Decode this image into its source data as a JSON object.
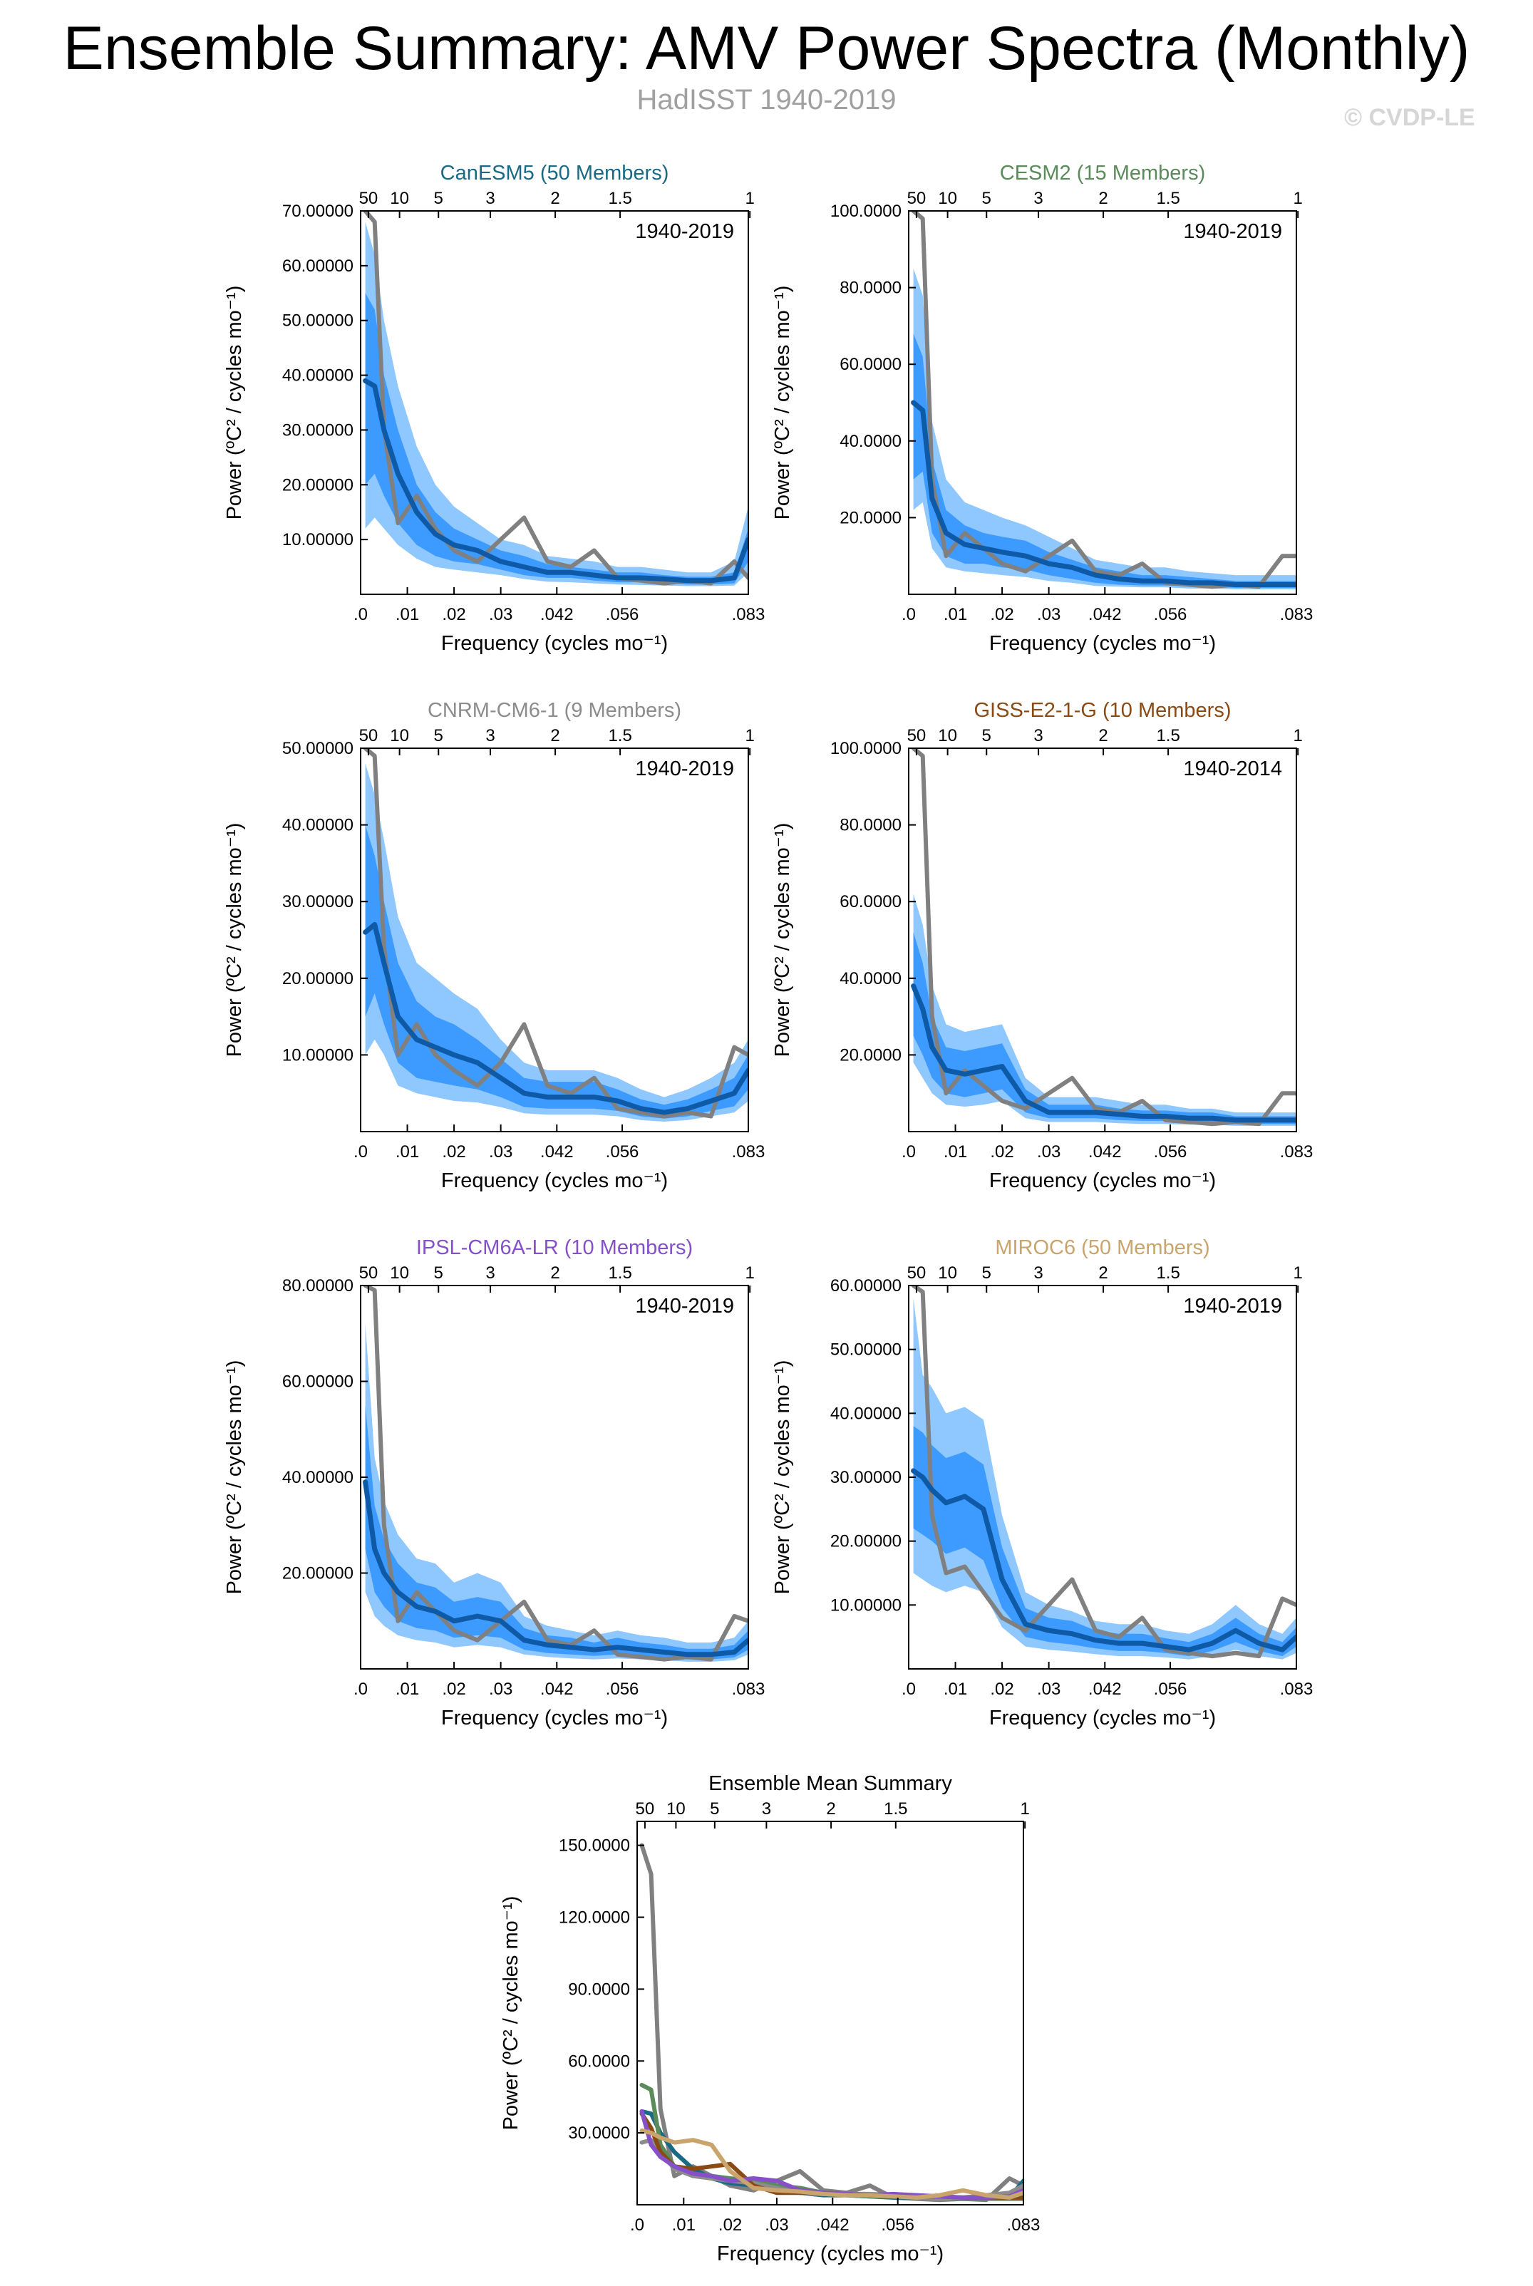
{
  "page": {
    "title": "Ensemble Summary: AMV Power Spectra (Monthly)",
    "subtitle": "HadISST 1940-2019",
    "copyright": "© CVDP-LE"
  },
  "colors": {
    "ens_line": "#0e5aa7",
    "band_outer": "#8fc7ff",
    "band_inner": "#3d9bff",
    "obs_line": "#808080",
    "axis": "#000000"
  },
  "shared_axes": {
    "x_ticks": [
      0.0,
      0.01,
      0.02,
      0.03,
      0.042,
      0.056,
      0.083
    ],
    "x_tick_labels": [
      ".0",
      ".01",
      ".02",
      ".03",
      ".042",
      ".056",
      ".083"
    ],
    "top_period_ticks": [
      {
        "freq": 0.001667,
        "label": "50"
      },
      {
        "freq": 0.008333,
        "label": "10"
      },
      {
        "freq": 0.016667,
        "label": "5"
      },
      {
        "freq": 0.027778,
        "label": "3"
      },
      {
        "freq": 0.041667,
        "label": "2"
      },
      {
        "freq": 0.055556,
        "label": "1.5"
      },
      {
        "freq": 0.083333,
        "label": "1"
      }
    ],
    "xlabel": "Frequency (cycles mo⁻¹)",
    "ylabel": "Power (ºC² / cycles mo⁻¹)",
    "xlim": [
      0,
      0.083
    ]
  },
  "chart_data": [
    {
      "type": "line",
      "title": "CanESM5 (50 Members)",
      "title_color": "#1a6a86",
      "period_label": "1940-2019",
      "ylim": [
        0,
        70
      ],
      "y_ticks": [
        10,
        20,
        30,
        40,
        50,
        60,
        70
      ],
      "y_tick_labels": [
        "10.00000",
        "20.00000",
        "30.00000",
        "40.00000",
        "50.00000",
        "60.00000",
        "70.00000"
      ],
      "x": [
        0.001,
        0.003,
        0.005,
        0.008,
        0.012,
        0.016,
        0.02,
        0.025,
        0.03,
        0.035,
        0.04,
        0.045,
        0.05,
        0.055,
        0.06,
        0.065,
        0.07,
        0.075,
        0.08,
        0.083
      ],
      "ens_mean": [
        39,
        38,
        30,
        22,
        15,
        11,
        9,
        8,
        6,
        5,
        4,
        4,
        3.5,
        3,
        3,
        2.8,
        2.5,
        2.5,
        3,
        10
      ],
      "band_inner_low": [
        20,
        22,
        18,
        13,
        9,
        7,
        6,
        5.5,
        4.5,
        3.5,
        3,
        3,
        2.5,
        2.2,
        2.2,
        2,
        1.8,
        1.8,
        2,
        6
      ],
      "band_inner_high": [
        55,
        52,
        40,
        30,
        20,
        15,
        12,
        10,
        8,
        7,
        5.5,
        5,
        4.5,
        4,
        4,
        3.5,
        3.2,
        3.2,
        4,
        12
      ],
      "band_outer_low": [
        12,
        14,
        12,
        9,
        6.5,
        5,
        4.5,
        4,
        3.5,
        2.8,
        2.3,
        2.2,
        2,
        1.8,
        1.7,
        1.6,
        1.5,
        1.5,
        1.6,
        4
      ],
      "band_outer_high": [
        68,
        62,
        50,
        38,
        27,
        20,
        16,
        13,
        10,
        9,
        7,
        6.5,
        6,
        5,
        5,
        4.5,
        4,
        4,
        6,
        16
      ],
      "obs": [
        70,
        68,
        30,
        13,
        18,
        12,
        8,
        6,
        10,
        14,
        6,
        5,
        8,
        3,
        2.5,
        2,
        2.5,
        2,
        6,
        3
      ]
    },
    {
      "type": "line",
      "title": "CESM2 (15 Members)",
      "title_color": "#5b8a5b",
      "period_label": "1940-2019",
      "ylim": [
        0,
        100
      ],
      "y_ticks": [
        20,
        40,
        60,
        80,
        100
      ],
      "y_tick_labels": [
        "20.0000",
        "40.0000",
        "60.0000",
        "80.0000",
        "100.0000"
      ],
      "x": [
        0.001,
        0.003,
        0.005,
        0.008,
        0.012,
        0.016,
        0.02,
        0.025,
        0.03,
        0.035,
        0.04,
        0.045,
        0.05,
        0.055,
        0.06,
        0.065,
        0.07,
        0.075,
        0.08,
        0.083
      ],
      "ens_mean": [
        50,
        48,
        25,
        16,
        13,
        12,
        11,
        10,
        8,
        7,
        5,
        4,
        3.5,
        3.5,
        3,
        3,
        2.5,
        2.5,
        2.5,
        2.5
      ],
      "band_inner_low": [
        30,
        32,
        16,
        10,
        8,
        8,
        7,
        6.5,
        5,
        4,
        3,
        2.5,
        2.3,
        2.3,
        2,
        2,
        1.7,
        1.7,
        1.7,
        1.7
      ],
      "band_inner_high": [
        68,
        62,
        35,
        22,
        18,
        16,
        15,
        14,
        11,
        9,
        7,
        6,
        5,
        5,
        4.5,
        4,
        3.5,
        3.5,
        3.5,
        3.5
      ],
      "band_outer_low": [
        22,
        24,
        12,
        7,
        6,
        5.5,
        5,
        4.5,
        3.5,
        3,
        2.2,
        2,
        1.8,
        1.8,
        1.5,
        1.5,
        1.3,
        1.3,
        1.3,
        1.3
      ],
      "band_outer_high": [
        85,
        78,
        45,
        30,
        24,
        22,
        20,
        18,
        15,
        12,
        9,
        8,
        7,
        7,
        6,
        5.5,
        5,
        5,
        5,
        5
      ],
      "obs": [
        100,
        98,
        30,
        10,
        16,
        12,
        8,
        6,
        10,
        14,
        6,
        5,
        8,
        3,
        2.5,
        2,
        2.5,
        2,
        10,
        10
      ]
    },
    {
      "type": "line",
      "title": "CNRM-CM6-1 (9 Members)",
      "title_color": "#8c8c8c",
      "period_label": "1940-2019",
      "ylim": [
        0,
        50
      ],
      "y_ticks": [
        10,
        20,
        30,
        40,
        50
      ],
      "y_tick_labels": [
        "10.00000",
        "20.00000",
        "30.00000",
        "40.00000",
        "50.00000"
      ],
      "x": [
        0.001,
        0.003,
        0.005,
        0.008,
        0.012,
        0.016,
        0.02,
        0.025,
        0.03,
        0.035,
        0.04,
        0.045,
        0.05,
        0.055,
        0.06,
        0.065,
        0.07,
        0.075,
        0.08,
        0.083
      ],
      "ens_mean": [
        26,
        27,
        22,
        15,
        12,
        11,
        10,
        9,
        7,
        5,
        4.5,
        4.5,
        4.5,
        4,
        3,
        2.5,
        3,
        4,
        5,
        8
      ],
      "band_inner_low": [
        15,
        18,
        14,
        9,
        7,
        6.5,
        6,
        5.5,
        4.5,
        3.2,
        3,
        3,
        3,
        2.7,
        2,
        1.7,
        2,
        2.7,
        3.3,
        5.5
      ],
      "band_inner_high": [
        40,
        36,
        30,
        22,
        17,
        15,
        14,
        12,
        9.5,
        7,
        6.5,
        6.5,
        6.5,
        5.5,
        4.2,
        3.5,
        4.2,
        5.5,
        7,
        10
      ],
      "band_outer_low": [
        10,
        12,
        10,
        6,
        5,
        4.5,
        4,
        3.8,
        3.2,
        2.4,
        2.2,
        2.2,
        2.2,
        2,
        1.5,
        1.3,
        1.5,
        2,
        2.5,
        4
      ],
      "band_outer_high": [
        48,
        44,
        38,
        28,
        22,
        20,
        18,
        16,
        12,
        9,
        8,
        8,
        8,
        7,
        5.5,
        4.5,
        5.5,
        7,
        9,
        12
      ],
      "obs": [
        50,
        49,
        24,
        10,
        14,
        10,
        8,
        6,
        9,
        14,
        6,
        5,
        7,
        3,
        2.5,
        2,
        2.5,
        2,
        11,
        10
      ]
    },
    {
      "type": "line",
      "title": "GISS-E2-1-G (10 Members)",
      "title_color": "#8a4a14",
      "period_label": "1940-2014",
      "ylim": [
        0,
        100
      ],
      "y_ticks": [
        20,
        40,
        60,
        80,
        100
      ],
      "y_tick_labels": [
        "20.0000",
        "40.0000",
        "60.0000",
        "80.0000",
        "100.0000"
      ],
      "x": [
        0.001,
        0.003,
        0.005,
        0.008,
        0.012,
        0.016,
        0.02,
        0.025,
        0.03,
        0.035,
        0.04,
        0.045,
        0.05,
        0.055,
        0.06,
        0.065,
        0.07,
        0.075,
        0.08,
        0.083
      ],
      "ens_mean": [
        38,
        32,
        22,
        16,
        15,
        16,
        17,
        8,
        5,
        5,
        5,
        4.5,
        4,
        4,
        3.5,
        3.5,
        3,
        3,
        3,
        3
      ],
      "band_inner_low": [
        25,
        20,
        14,
        10,
        9,
        10,
        11,
        5,
        3.5,
        3.5,
        3.5,
        3,
        2.8,
        2.8,
        2.4,
        2.4,
        2,
        2,
        2,
        2
      ],
      "band_inner_high": [
        52,
        44,
        30,
        22,
        21,
        22,
        23,
        11,
        7,
        7,
        7,
        6,
        5.5,
        5.5,
        5,
        5,
        4,
        4,
        4,
        4
      ],
      "band_outer_low": [
        18,
        14,
        10,
        7,
        6.5,
        7,
        8,
        3.5,
        2.5,
        2.5,
        2.5,
        2.2,
        2,
        2,
        1.8,
        1.8,
        1.5,
        1.5,
        1.5,
        1.5
      ],
      "band_outer_high": [
        62,
        54,
        38,
        28,
        26,
        27,
        28,
        14,
        9,
        9,
        9,
        8,
        7,
        7,
        6,
        6,
        5,
        5,
        5,
        5
      ],
      "obs": [
        100,
        98,
        30,
        10,
        16,
        12,
        8,
        6,
        10,
        14,
        6,
        5,
        8,
        3,
        2.5,
        2,
        2.5,
        2,
        10,
        10
      ]
    },
    {
      "type": "line",
      "title": "IPSL-CM6A-LR (10 Members)",
      "title_color": "#8550c8",
      "period_label": "1940-2019",
      "ylim": [
        0,
        80
      ],
      "y_ticks": [
        20,
        40,
        60,
        80
      ],
      "y_tick_labels": [
        "20.00000",
        "40.00000",
        "60.00000",
        "80.00000"
      ],
      "x": [
        0.001,
        0.003,
        0.005,
        0.008,
        0.012,
        0.016,
        0.02,
        0.025,
        0.03,
        0.035,
        0.04,
        0.045,
        0.05,
        0.055,
        0.06,
        0.065,
        0.07,
        0.075,
        0.08,
        0.083
      ],
      "ens_mean": [
        39,
        25,
        20,
        16,
        13,
        12,
        10,
        11,
        10,
        6,
        5,
        4.5,
        4,
        4.5,
        4,
        3.5,
        3,
        3,
        3.5,
        6
      ],
      "band_inner_low": [
        25,
        16,
        13,
        10,
        8.5,
        8,
        6.5,
        7,
        6.5,
        4,
        3.3,
        3,
        2.7,
        3,
        2.7,
        2.4,
        2,
        2,
        2.4,
        4
      ],
      "band_inner_high": [
        55,
        34,
        27,
        22,
        18,
        17,
        14,
        15,
        14,
        8.5,
        7,
        6.5,
        5.5,
        6.5,
        5.5,
        5,
        4.2,
        4.2,
        5,
        8
      ],
      "band_outer_low": [
        16,
        11,
        9,
        7,
        6,
        5.5,
        4.5,
        5,
        4.5,
        3,
        2.5,
        2.2,
        2,
        2.2,
        2,
        1.8,
        1.5,
        1.5,
        1.8,
        3
      ],
      "band_outer_high": [
        72,
        44,
        35,
        28,
        23,
        22,
        18,
        20,
        18,
        11,
        9,
        8,
        7,
        8,
        7,
        6.5,
        5.5,
        5.5,
        6.5,
        10
      ],
      "obs": [
        80,
        79,
        30,
        10,
        16,
        12,
        8,
        6,
        10,
        14,
        6,
        5,
        8,
        3,
        2.5,
        2,
        2.5,
        2,
        11,
        10
      ]
    },
    {
      "type": "line",
      "title": "MIROC6 (50 Members)",
      "title_color": "#c9a46c",
      "period_label": "1940-2019",
      "ylim": [
        0,
        60
      ],
      "y_ticks": [
        10,
        20,
        30,
        40,
        50,
        60
      ],
      "y_tick_labels": [
        "10.00000",
        "20.00000",
        "30.00000",
        "40.00000",
        "50.00000",
        "60.00000"
      ],
      "x": [
        0.001,
        0.003,
        0.005,
        0.008,
        0.012,
        0.016,
        0.02,
        0.025,
        0.03,
        0.035,
        0.04,
        0.045,
        0.05,
        0.055,
        0.06,
        0.065,
        0.07,
        0.075,
        0.08,
        0.083
      ],
      "ens_mean": [
        31,
        30,
        28,
        26,
        27,
        25,
        14,
        7,
        6,
        5.5,
        4.5,
        4,
        4,
        3.5,
        3,
        4,
        6,
        4,
        3,
        5
      ],
      "band_inner_low": [
        22,
        21,
        20,
        18,
        19,
        17,
        9.5,
        5,
        4.2,
        3.8,
        3.2,
        2.8,
        2.8,
        2.5,
        2,
        2.8,
        4.2,
        2.8,
        2,
        3.5
      ],
      "band_inner_high": [
        38,
        37,
        35,
        33,
        34,
        32,
        19,
        9.5,
        8,
        7.5,
        6,
        5.5,
        5.5,
        4.8,
        4.2,
        5.5,
        8,
        5.5,
        4.2,
        6.5
      ],
      "band_outer_low": [
        15,
        14,
        13,
        12,
        13,
        12,
        6.5,
        3.5,
        3,
        2.7,
        2.3,
        2,
        2,
        1.8,
        1.5,
        2,
        3,
        2,
        1.5,
        2.5
      ],
      "band_outer_high": [
        58,
        46,
        44,
        40,
        41,
        39,
        24,
        12,
        10,
        9,
        7.5,
        7,
        7,
        6,
        5.5,
        7,
        10,
        7,
        5.5,
        8
      ],
      "obs": [
        60,
        59,
        24,
        15,
        16,
        12,
        8,
        6,
        10,
        14,
        6,
        5,
        8,
        3,
        2.5,
        2,
        2.5,
        2,
        11,
        10
      ]
    },
    {
      "type": "line",
      "title": "Ensemble Mean Summary",
      "ylim": [
        0,
        160
      ],
      "y_ticks": [
        30,
        60,
        90,
        120,
        150
      ],
      "y_tick_labels": [
        "30.0000",
        "60.0000",
        "90.0000",
        "120.0000",
        "150.0000"
      ],
      "x": [
        0.001,
        0.003,
        0.005,
        0.008,
        0.012,
        0.016,
        0.02,
        0.025,
        0.03,
        0.035,
        0.04,
        0.045,
        0.05,
        0.055,
        0.06,
        0.065,
        0.07,
        0.075,
        0.08,
        0.083
      ],
      "series": [
        {
          "name": "HadISST",
          "color": "#808080",
          "values": [
            150,
            138,
            40,
            12,
            16,
            12,
            8,
            6,
            10,
            14,
            6,
            5,
            8,
            3,
            2.5,
            2,
            2.5,
            2,
            11,
            8
          ]
        },
        {
          "name": "CanESM5",
          "color": "#1a6a86",
          "values": [
            39,
            38,
            30,
            22,
            15,
            11,
            9,
            8,
            6,
            5,
            4,
            4,
            3.5,
            3,
            3,
            2.8,
            2.5,
            2.5,
            3,
            10
          ]
        },
        {
          "name": "CESM2",
          "color": "#5b8a5b",
          "values": [
            50,
            48,
            25,
            16,
            13,
            12,
            11,
            10,
            8,
            7,
            5,
            4,
            3.5,
            3.5,
            3,
            3,
            2.5,
            2.5,
            2.5,
            2.5
          ]
        },
        {
          "name": "CNRM-CM6-1",
          "color": "#8c8c8c",
          "values": [
            26,
            27,
            22,
            15,
            12,
            11,
            10,
            9,
            7,
            5,
            4.5,
            4.5,
            4.5,
            4,
            3,
            2.5,
            3,
            4,
            5,
            8
          ]
        },
        {
          "name": "GISS-E2-1-G",
          "color": "#8a4a14",
          "values": [
            38,
            32,
            22,
            16,
            15,
            16,
            17,
            8,
            5,
            5,
            5,
            4.5,
            4,
            4,
            3.5,
            3.5,
            3,
            3,
            3,
            3
          ]
        },
        {
          "name": "IPSL-CM6A-LR",
          "color": "#8550c8",
          "values": [
            39,
            25,
            20,
            16,
            13,
            12,
            10,
            11,
            10,
            6,
            5,
            4.5,
            4,
            4.5,
            4,
            3.5,
            3,
            3,
            3.5,
            6
          ]
        },
        {
          "name": "MIROC6",
          "color": "#c9a46c",
          "values": [
            31,
            30,
            28,
            26,
            27,
            25,
            14,
            7,
            6,
            5.5,
            4.5,
            4,
            4,
            3.5,
            3,
            4,
            6,
            4,
            3,
            5
          ]
        }
      ]
    }
  ]
}
